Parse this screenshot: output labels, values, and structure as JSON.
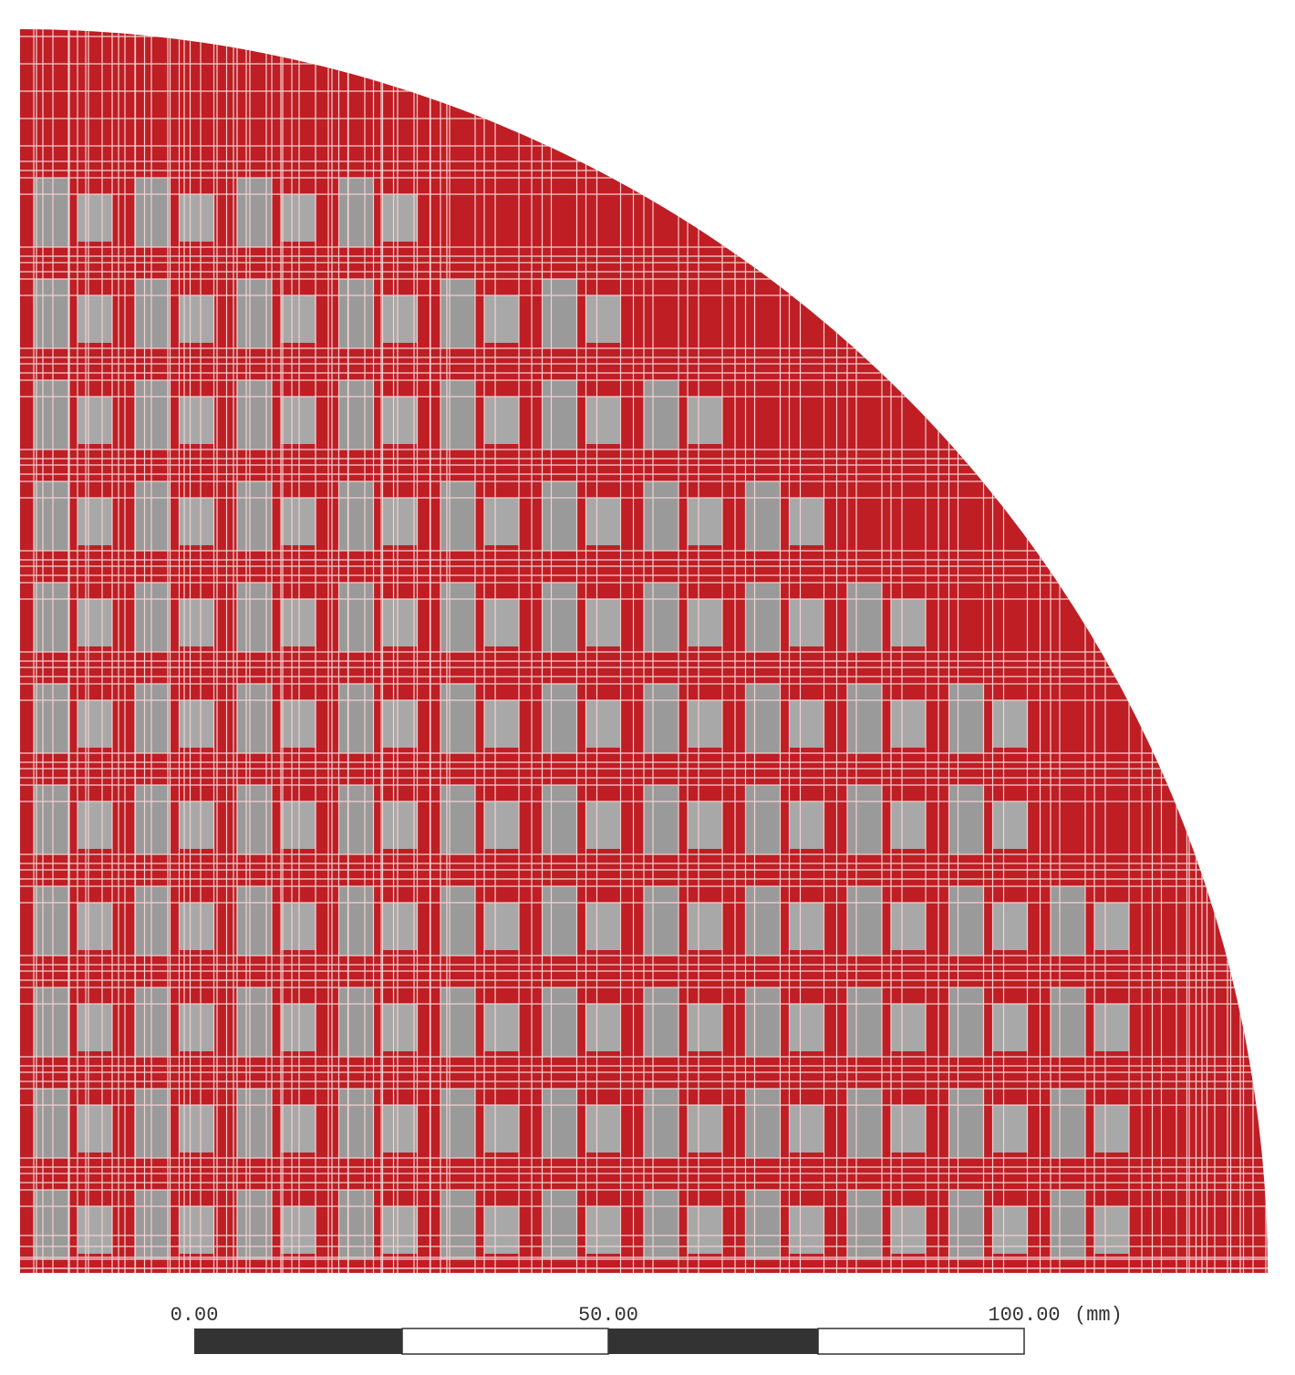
{
  "scale_bar": {
    "labels": [
      "0.00",
      "50.00",
      "100.00"
    ],
    "unit": "(mm)"
  }
}
